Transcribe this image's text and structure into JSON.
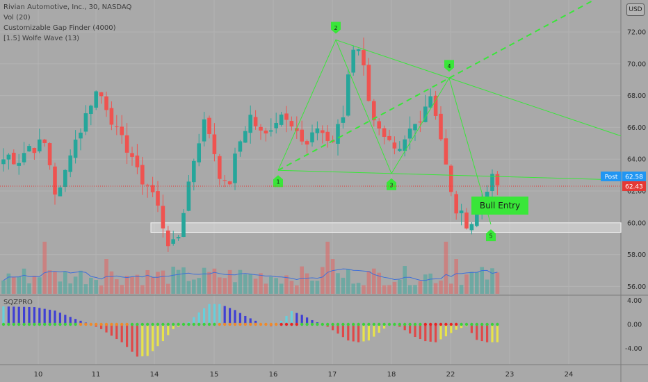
{
  "legend": {
    "symbol": "Rivian Automotive, Inc., 30, NASDAQ",
    "vol": "Vol (20)",
    "gap": "Customizable Gap Finder (4000)",
    "wolfe": "[1.5] Wolfe Wave (13)"
  },
  "currency": "USD",
  "oscillator_title": "SQZPRO",
  "price_tags": {
    "post_label": "Post",
    "post_value": "62.58",
    "last_value": "62.43"
  },
  "annotation": "Bull Entry",
  "colors": {
    "up": "#26a69a",
    "down": "#ef5350",
    "wolfe": "#39e639",
    "post_tag": "#2196f3",
    "last_tag": "#e53935"
  },
  "chart_data": [
    {
      "type": "candlestick",
      "title": "Rivian Automotive, Inc., 30, NASDAQ",
      "y_ticks": [
        56.0,
        58.0,
        60.0,
        62.0,
        64.0,
        66.0,
        68.0,
        70.0,
        72.0
      ],
      "ylim": [
        55.5,
        74.5
      ],
      "x_ticks": [
        "10",
        "11",
        "14",
        "15",
        "16",
        "17",
        "18",
        "22",
        "23",
        "24"
      ],
      "wolfe_points": [
        {
          "label": "1",
          "price": 63.3
        },
        {
          "label": "2",
          "price": 71.5
        },
        {
          "label": "3",
          "price": 63.1
        },
        {
          "label": "4",
          "price": 69.1
        },
        {
          "label": "5",
          "price": 59.9
        }
      ],
      "gap_zone": [
        59.4,
        60.0
      ],
      "anchor_prices": [
        64.0,
        64.3,
        63.8,
        64.4,
        64.9,
        64.7,
        65.2,
        63.6,
        61.3,
        62.7,
        64.6,
        65.4,
        66.3,
        67.6,
        68.3,
        67.8,
        66.8,
        65.6,
        64.9,
        64.6,
        63.1,
        62.6,
        62.3,
        61.1,
        59.7,
        58.4,
        58.7,
        60.9,
        63.1,
        64.9,
        66.3,
        65.6,
        63.7,
        62.2,
        62.7,
        64.6,
        65.8,
        66.7,
        66.0,
        65.2,
        66.1,
        66.6,
        67.0,
        66.6,
        65.8,
        64.6,
        65.0,
        66.1,
        65.6,
        64.8,
        65.8,
        66.8,
        70.8,
        71.5,
        69.6,
        67.4,
        65.9,
        65.1,
        64.7,
        64.0,
        64.9,
        65.9,
        66.3,
        67.3,
        68.1,
        66.6,
        64.2,
        61.8,
        60.6,
        60.2,
        59.9,
        60.9,
        62.0,
        62.7,
        62.4
      ],
      "volume_axis_ticks": [
        56.0,
        58.0
      ],
      "oscillator": {
        "y_ticks": [
          4.0,
          0.0,
          -4.0
        ],
        "ylim": [
          -6.5,
          4.5
        ],
        "momentum_shape": [
          [
            0,
            3.0
          ],
          [
            6,
            2.9
          ],
          [
            10,
            2.3
          ],
          [
            14,
            0.9
          ],
          [
            17,
            0.0
          ],
          [
            19,
            -0.8
          ],
          [
            23,
            -3.0
          ],
          [
            26,
            -5.4
          ],
          [
            28,
            -5.3
          ],
          [
            31,
            -2.8
          ],
          [
            33,
            -0.8
          ],
          [
            36,
            0.4
          ],
          [
            38,
            2.0
          ],
          [
            40,
            3.4
          ],
          [
            42,
            3.4
          ],
          [
            45,
            2.4
          ],
          [
            47,
            1.4
          ],
          [
            49,
            0.6
          ],
          [
            50,
            0.0
          ],
          [
            52,
            -0.3
          ],
          [
            54,
            0.6
          ],
          [
            56,
            2.2
          ],
          [
            58,
            1.6
          ],
          [
            60,
            0.7
          ],
          [
            62,
            0.0
          ],
          [
            63,
            -0.4
          ],
          [
            67,
            -2.7
          ],
          [
            69,
            -3.0
          ],
          [
            71,
            -2.7
          ],
          [
            73,
            -1.4
          ],
          [
            75,
            0.0
          ],
          [
            77,
            -0.4
          ],
          [
            80,
            -2.1
          ],
          [
            82,
            -2.8
          ],
          [
            84,
            -3.0
          ],
          [
            86,
            -2.0
          ],
          [
            88,
            -0.9
          ],
          [
            90,
            -0.3
          ],
          [
            92,
            -2.6
          ],
          [
            94,
            -3.0
          ],
          [
            97,
            -3.0
          ]
        ]
      }
    }
  ]
}
